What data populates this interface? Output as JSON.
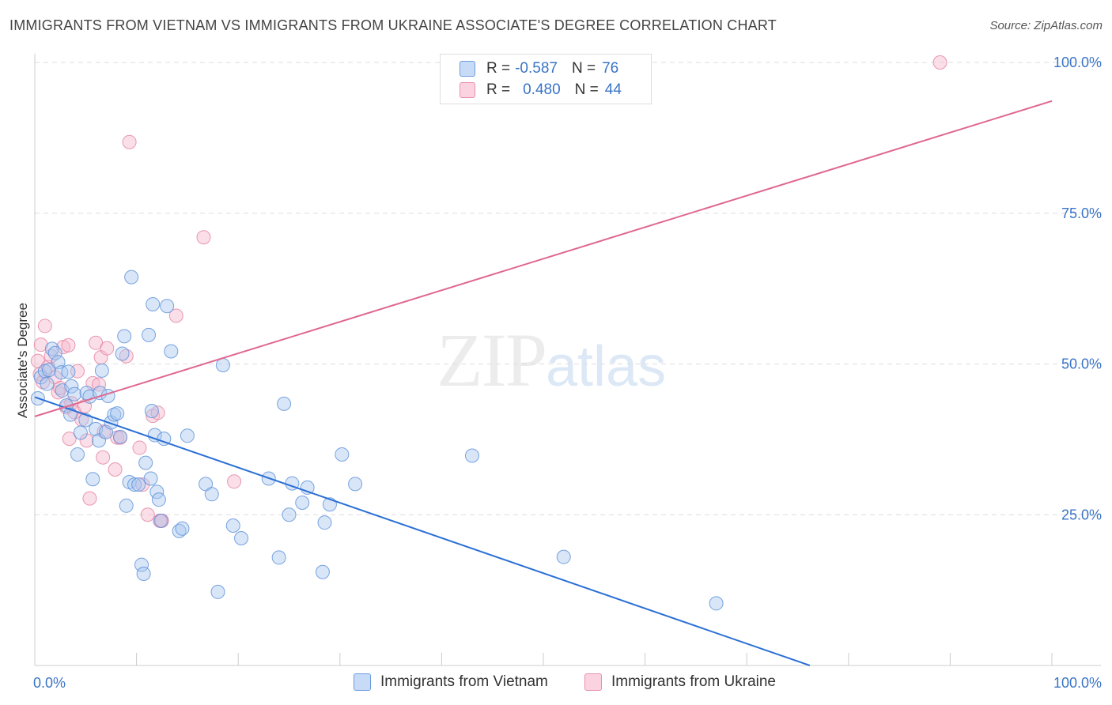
{
  "header": {
    "title": "IMMIGRANTS FROM VIETNAM VS IMMIGRANTS FROM UKRAINE ASSOCIATE'S DEGREE CORRELATION CHART",
    "source": "Source: ZipAtlas.com"
  },
  "watermark": {
    "zip": "ZIP",
    "atlas": "atlas"
  },
  "legend": {
    "rows": [
      {
        "r_label": "R =",
        "r_value": "-0.587",
        "n_label": "N =",
        "n_value": "76",
        "color": "#a9c8f0"
      },
      {
        "r_label": "R =",
        "r_value": "0.480",
        "n_label": "N =",
        "n_value": "44",
        "color": "#f7b8cc"
      }
    ]
  },
  "bottom_legend": {
    "vietnam": "Immigrants from Vietnam",
    "ukraine": "Immigrants from Ukraine"
  },
  "colors": {
    "vietnam_fill": "#a9c8f0",
    "vietnam_stroke": "#5a8fd8",
    "vietnam_line": "#2a6fd6",
    "ukraine_fill": "#f7b8cc",
    "ukraine_stroke": "#e47fa0",
    "ukraine_line": "#e0678f",
    "grid": "#dddddd",
    "axis_text": "#3a74c7"
  },
  "chart_data": {
    "type": "scatter",
    "title": "IMMIGRANTS FROM VIETNAM VS IMMIGRANTS FROM UKRAINE ASSOCIATE'S DEGREE CORRELATION CHART",
    "xlabel": "",
    "ylabel": "Associate's Degree",
    "xlim": [
      0,
      100
    ],
    "ylim": [
      0,
      100
    ],
    "x_tick_labels": [
      "0.0%",
      "100.0%"
    ],
    "y_ticks": [
      25,
      50,
      75,
      100
    ],
    "y_tick_labels": [
      "25.0%",
      "50.0%",
      "75.0%",
      "100.0%"
    ],
    "grid": "horizontal dashed",
    "legend_position": "top-center",
    "series": [
      {
        "name": "Immigrants from Vietnam",
        "trend": {
          "x": [
            0,
            76.2
          ],
          "y": [
            44.5,
            0
          ]
        },
        "points": [
          [
            0.3,
            44.3
          ],
          [
            0.6,
            47.8
          ],
          [
            1.0,
            48.8
          ],
          [
            1.4,
            49.0
          ],
          [
            1.7,
            52.5
          ],
          [
            2.0,
            51.8
          ],
          [
            2.3,
            50.3
          ],
          [
            2.7,
            45.6
          ],
          [
            3.1,
            43.1
          ],
          [
            3.5,
            41.6
          ],
          [
            3.6,
            46.3
          ],
          [
            3.9,
            45.0
          ],
          [
            4.2,
            35.0
          ],
          [
            4.5,
            38.6
          ],
          [
            5.0,
            40.7
          ],
          [
            5.1,
            45.2
          ],
          [
            5.4,
            44.6
          ],
          [
            5.7,
            30.9
          ],
          [
            6.0,
            39.2
          ],
          [
            6.3,
            37.3
          ],
          [
            6.4,
            45.2
          ],
          [
            6.6,
            48.9
          ],
          [
            7.0,
            38.7
          ],
          [
            7.2,
            44.7
          ],
          [
            7.5,
            40.3
          ],
          [
            7.8,
            41.6
          ],
          [
            8.1,
            41.8
          ],
          [
            8.4,
            37.9
          ],
          [
            8.6,
            51.7
          ],
          [
            8.8,
            54.6
          ],
          [
            9.0,
            26.5
          ],
          [
            9.3,
            30.4
          ],
          [
            9.5,
            64.4
          ],
          [
            9.8,
            30.0
          ],
          [
            10.2,
            30.0
          ],
          [
            10.5,
            16.7
          ],
          [
            10.7,
            15.2
          ],
          [
            10.9,
            33.6
          ],
          [
            11.2,
            54.8
          ],
          [
            11.4,
            31.0
          ],
          [
            11.5,
            42.2
          ],
          [
            11.6,
            59.9
          ],
          [
            11.8,
            38.2
          ],
          [
            12.0,
            28.8
          ],
          [
            12.2,
            27.5
          ],
          [
            12.4,
            24.0
          ],
          [
            12.7,
            37.6
          ],
          [
            13.0,
            59.6
          ],
          [
            13.4,
            52.1
          ],
          [
            14.2,
            22.3
          ],
          [
            14.5,
            22.7
          ],
          [
            15.0,
            38.1
          ],
          [
            16.8,
            30.1
          ],
          [
            17.4,
            28.4
          ],
          [
            18.0,
            12.2
          ],
          [
            18.5,
            49.8
          ],
          [
            19.5,
            23.2
          ],
          [
            20.3,
            21.1
          ],
          [
            23.0,
            31.0
          ],
          [
            24.0,
            17.9
          ],
          [
            24.5,
            43.4
          ],
          [
            25.0,
            25.0
          ],
          [
            25.3,
            30.2
          ],
          [
            26.3,
            27.0
          ],
          [
            26.8,
            29.5
          ],
          [
            28.3,
            15.5
          ],
          [
            28.5,
            23.7
          ],
          [
            29.0,
            26.7
          ],
          [
            30.2,
            35.0
          ],
          [
            31.5,
            30.1
          ],
          [
            43.0,
            34.8
          ],
          [
            52.0,
            18.0
          ],
          [
            67.0,
            10.3
          ],
          [
            2.6,
            48.6
          ],
          [
            1.2,
            46.7
          ],
          [
            3.3,
            48.7
          ]
        ]
      },
      {
        "name": "Immigrants from Ukraine",
        "trend": {
          "x": [
            0,
            100
          ],
          "y": [
            41.3,
            93.6
          ]
        },
        "points": [
          [
            0.3,
            50.5
          ],
          [
            0.5,
            48.3
          ],
          [
            0.6,
            53.2
          ],
          [
            0.8,
            47.0
          ],
          [
            1.0,
            56.3
          ],
          [
            1.3,
            49.5
          ],
          [
            1.6,
            51.3
          ],
          [
            2.0,
            47.8
          ],
          [
            2.3,
            45.3
          ],
          [
            2.5,
            46.0
          ],
          [
            2.8,
            52.8
          ],
          [
            3.1,
            42.8
          ],
          [
            3.3,
            53.1
          ],
          [
            3.4,
            37.6
          ],
          [
            3.6,
            43.5
          ],
          [
            3.9,
            42.0
          ],
          [
            4.2,
            48.8
          ],
          [
            4.6,
            40.8
          ],
          [
            4.9,
            43.0
          ],
          [
            5.1,
            37.3
          ],
          [
            5.4,
            27.7
          ],
          [
            5.7,
            46.8
          ],
          [
            6.0,
            53.5
          ],
          [
            6.3,
            46.6
          ],
          [
            6.5,
            51.1
          ],
          [
            6.7,
            34.5
          ],
          [
            6.8,
            38.8
          ],
          [
            7.1,
            52.6
          ],
          [
            7.9,
            32.5
          ],
          [
            8.1,
            37.8
          ],
          [
            8.4,
            37.8
          ],
          [
            9.0,
            51.3
          ],
          [
            9.3,
            86.8
          ],
          [
            10.3,
            36.1
          ],
          [
            10.6,
            30.0
          ],
          [
            11.1,
            25.0
          ],
          [
            11.6,
            41.4
          ],
          [
            12.1,
            41.9
          ],
          [
            12.3,
            24.0
          ],
          [
            12.5,
            24.0
          ],
          [
            13.9,
            58.0
          ],
          [
            16.6,
            71.0
          ],
          [
            19.6,
            30.5
          ],
          [
            89.0,
            100.0
          ]
        ]
      }
    ]
  }
}
